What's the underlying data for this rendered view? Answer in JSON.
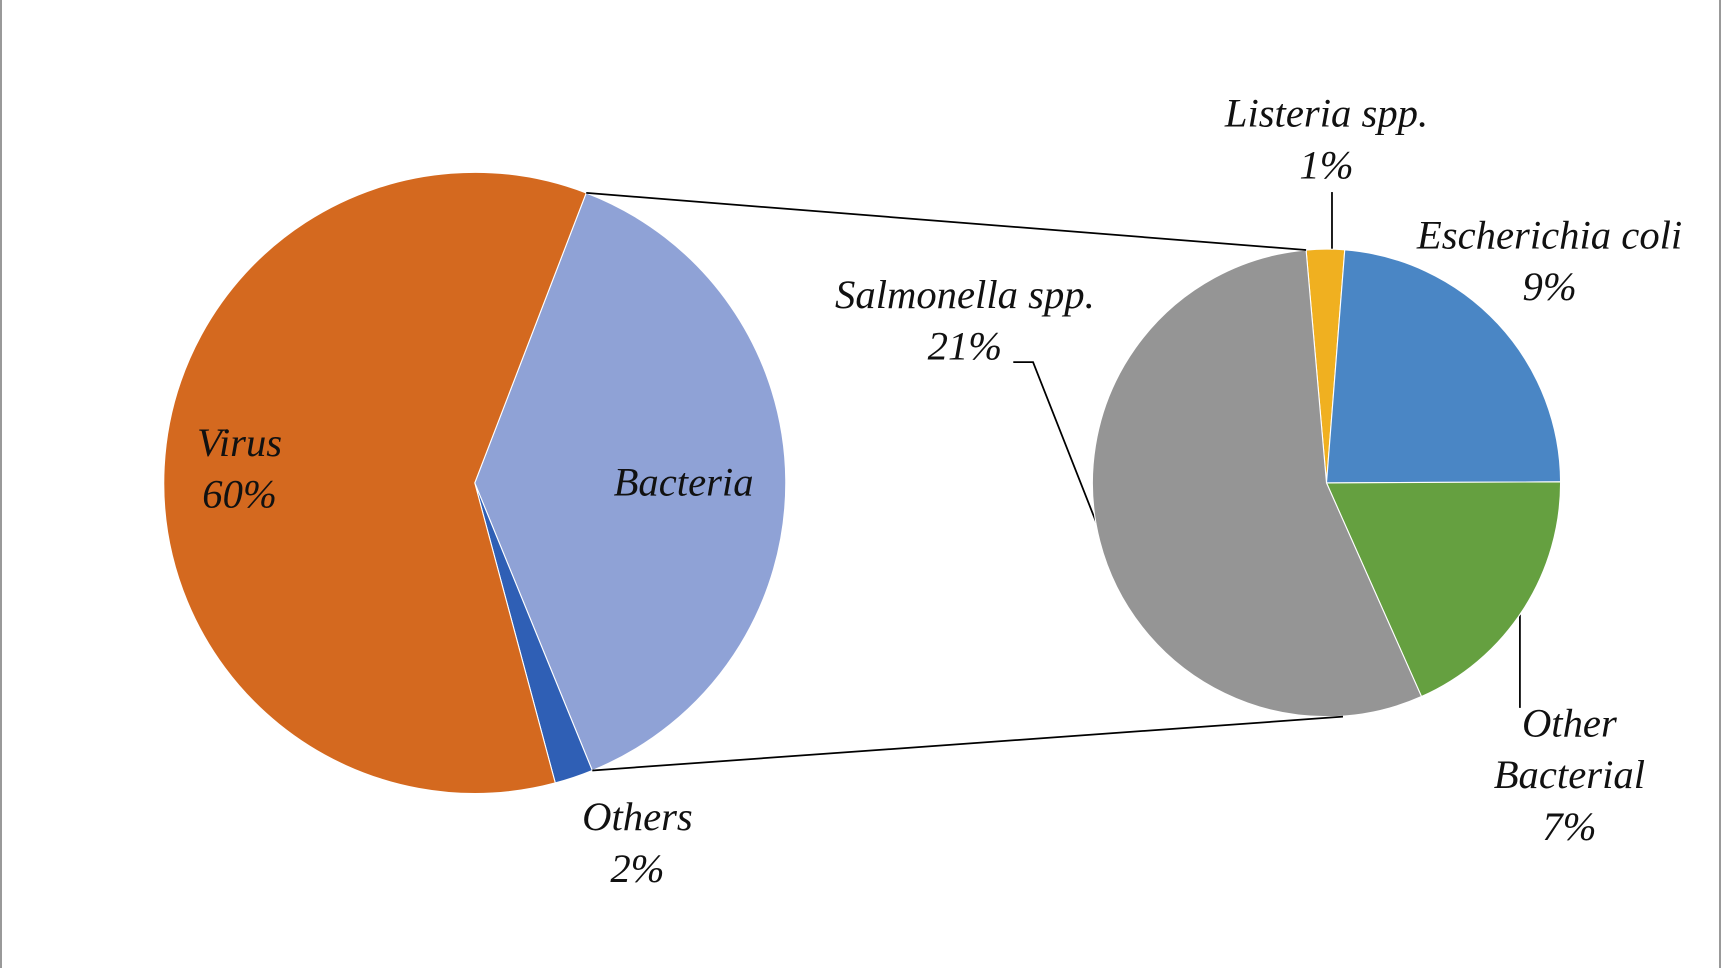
{
  "chart_data": [
    {
      "type": "pie",
      "categories": [
        "Bacteria",
        "Others",
        "Virus"
      ],
      "values": [
        38,
        2,
        60
      ],
      "value_labels": [
        null,
        "2%",
        "60%"
      ],
      "colors": [
        "#8fa2d6",
        "#2f5fb5",
        "#d4691f"
      ]
    },
    {
      "type": "pie",
      "categories": [
        "Listeria spp.",
        "Escherichia coli",
        "Other Bacterial",
        "Salmonella spp."
      ],
      "values": [
        1,
        9,
        7,
        21
      ],
      "value_labels": [
        "1%",
        "9%",
        "7%",
        "21%"
      ],
      "colors": [
        "#f0b020",
        "#4a86c5",
        "#65a040",
        "#959595"
      ]
    }
  ]
}
